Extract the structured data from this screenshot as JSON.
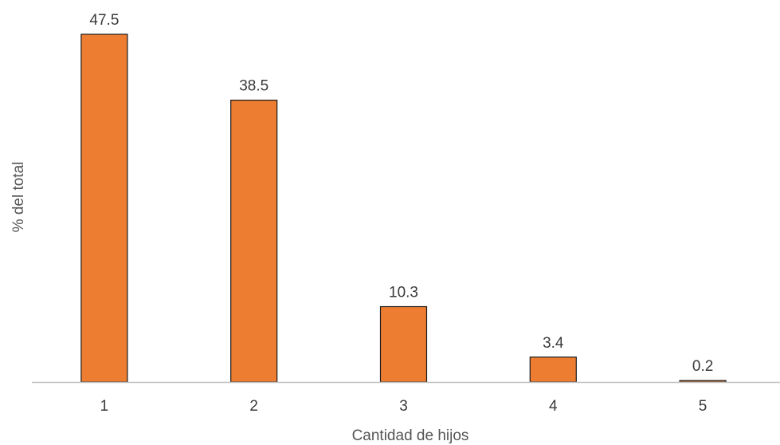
{
  "chart_data": {
    "type": "bar",
    "categories": [
      "1",
      "2",
      "3",
      "4",
      "5"
    ],
    "values": [
      47.5,
      38.5,
      10.3,
      3.4,
      0.2
    ],
    "data_labels": [
      "47.5",
      "38.5",
      "10.3",
      "3.4",
      "0.2"
    ],
    "xlabel": "Cantidad de hijos",
    "ylabel": "% del total",
    "ylim": [
      0,
      47.5
    ],
    "grid": false,
    "bar_color": "#ED7D31",
    "bar_edge_color": "#1a1a1a",
    "axis_color": "#bfbfbf"
  }
}
